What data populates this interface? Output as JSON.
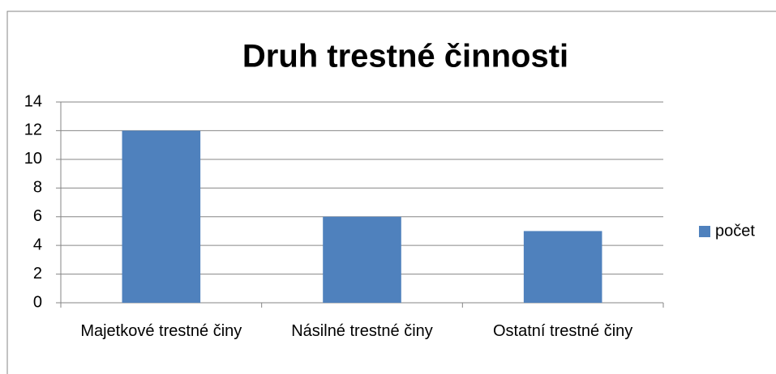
{
  "chart_data": {
    "type": "bar",
    "title": "Druh trestné činnosti",
    "categories": [
      "Majetkové trestné činy",
      "Násilné trestné činy",
      "Ostatní trestné činy"
    ],
    "series": [
      {
        "name": "počet",
        "color": "#4f81bd",
        "values": [
          12,
          6,
          5
        ]
      }
    ],
    "ylim": [
      0,
      14
    ],
    "yticks": [
      0,
      2,
      4,
      6,
      8,
      10,
      12,
      14
    ],
    "grid": true,
    "legend": "right"
  }
}
